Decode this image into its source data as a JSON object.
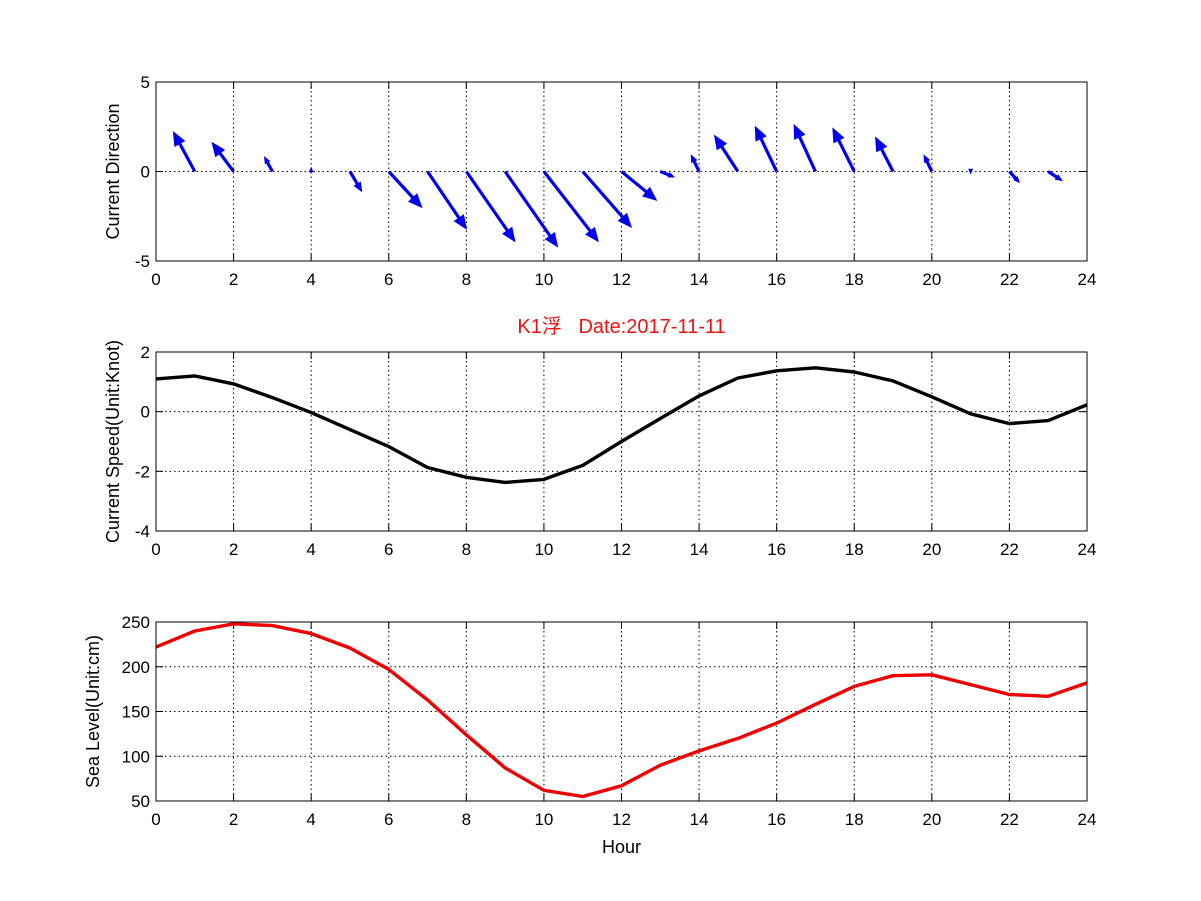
{
  "chart_data": [
    {
      "type": "quiver",
      "title": "",
      "xlabel": "",
      "ylabel": "Current Direction",
      "xlim": [
        0,
        24
      ],
      "ylim": [
        -5,
        5
      ],
      "xticks": [
        0,
        2,
        4,
        6,
        8,
        10,
        12,
        14,
        16,
        18,
        20,
        22,
        24
      ],
      "yticks": [
        -5,
        0,
        5
      ],
      "grid": true,
      "color": "#0000ee",
      "vectors": [
        {
          "x": 1,
          "u": -0.55,
          "v": 2.2
        },
        {
          "x": 2,
          "u": -0.55,
          "v": 1.6
        },
        {
          "x": 3,
          "u": -0.2,
          "v": 0.8
        },
        {
          "x": 4,
          "u": 0,
          "v": 0.2
        },
        {
          "x": 5,
          "u": 0.3,
          "v": -1.1
        },
        {
          "x": 6,
          "u": 0.85,
          "v": -2.0
        },
        {
          "x": 7,
          "u": 1.0,
          "v": -3.2
        },
        {
          "x": 8,
          "u": 1.25,
          "v": -3.9
        },
        {
          "x": 9,
          "u": 1.35,
          "v": -4.2
        },
        {
          "x": 10,
          "u": 1.4,
          "v": -3.9
        },
        {
          "x": 11,
          "u": 1.25,
          "v": -3.1
        },
        {
          "x": 12,
          "u": 0.9,
          "v": -1.6
        },
        {
          "x": 13,
          "u": 0.35,
          "v": -0.3
        },
        {
          "x": 14,
          "u": -0.2,
          "v": 0.9
        },
        {
          "x": 15,
          "u": -0.6,
          "v": 2.0
        },
        {
          "x": 16,
          "u": -0.55,
          "v": 2.5
        },
        {
          "x": 17,
          "u": -0.55,
          "v": 2.6
        },
        {
          "x": 18,
          "u": -0.55,
          "v": 2.4
        },
        {
          "x": 19,
          "u": -0.45,
          "v": 1.9
        },
        {
          "x": 20,
          "u": -0.2,
          "v": 0.9
        },
        {
          "x": 21,
          "u": 0,
          "v": -0.1
        },
        {
          "x": 22,
          "u": 0.25,
          "v": -0.6
        },
        {
          "x": 23,
          "u": 0.35,
          "v": -0.5
        }
      ]
    },
    {
      "type": "line",
      "title": "K1浮   Date:2017-11-11",
      "title_color": "#ee1111",
      "xlabel": "",
      "ylabel": "Current Speed(Unit:Knot)",
      "xlim": [
        0,
        24
      ],
      "ylim": [
        -4,
        2
      ],
      "xticks": [
        0,
        2,
        4,
        6,
        8,
        10,
        12,
        14,
        16,
        18,
        20,
        22,
        24
      ],
      "yticks": [
        -4,
        -2,
        0,
        2
      ],
      "grid": true,
      "color": "#000000",
      "x": [
        0,
        1,
        2,
        3,
        4,
        5,
        6,
        7,
        8,
        9,
        10,
        11,
        12,
        13,
        14,
        15,
        16,
        17,
        18,
        19,
        20,
        21,
        22,
        23,
        24
      ],
      "values": [
        1.1,
        1.2,
        0.93,
        0.47,
        -0.03,
        -0.6,
        -1.17,
        -1.87,
        -2.2,
        -2.37,
        -2.27,
        -1.8,
        -1.0,
        -0.23,
        0.53,
        1.13,
        1.37,
        1.47,
        1.33,
        1.03,
        0.5,
        -0.07,
        -0.4,
        -0.3,
        0.23
      ]
    },
    {
      "type": "line",
      "title": "",
      "xlabel": "Hour",
      "ylabel": "Sea Level(Unit:cm)",
      "xlim": [
        0,
        24
      ],
      "ylim": [
        50,
        250
      ],
      "xticks": [
        0,
        2,
        4,
        6,
        8,
        10,
        12,
        14,
        16,
        18,
        20,
        22,
        24
      ],
      "yticks": [
        50,
        100,
        150,
        200,
        250
      ],
      "grid": true,
      "color": "#ee0000",
      "x": [
        0,
        1,
        2,
        3,
        4,
        5,
        6,
        7,
        8,
        9,
        10,
        11,
        12,
        13,
        14,
        15,
        16,
        17,
        18,
        19,
        20,
        21,
        22,
        23,
        24
      ],
      "values": [
        222,
        240,
        248,
        246,
        237,
        221,
        197,
        163,
        124,
        87,
        62,
        55,
        67,
        90,
        106,
        120,
        137,
        158,
        178,
        190,
        191,
        180,
        169,
        167,
        182
      ]
    }
  ]
}
